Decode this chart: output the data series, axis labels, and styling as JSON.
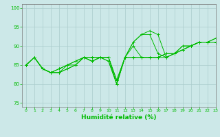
{
  "title": "",
  "xlabel": "Humidité relative (%)",
  "ylabel": "",
  "xlim": [
    -0.5,
    23
  ],
  "ylim": [
    74,
    101
  ],
  "yticks": [
    75,
    80,
    85,
    90,
    95,
    100
  ],
  "xticks": [
    0,
    1,
    2,
    3,
    4,
    5,
    6,
    7,
    8,
    9,
    10,
    11,
    12,
    13,
    14,
    15,
    16,
    17,
    18,
    19,
    20,
    21,
    22,
    23
  ],
  "background_color": "#cce8e8",
  "grid_color": "#aacccc",
  "line_color": "#00bb00",
  "series": [
    [
      85,
      87,
      84,
      83,
      83,
      84,
      85,
      87,
      86,
      87,
      86,
      80,
      87,
      91,
      93,
      94,
      93,
      87,
      88,
      90,
      90,
      91,
      91,
      91
    ],
    [
      85,
      87,
      84,
      83,
      83,
      84,
      85,
      87,
      86,
      87,
      86,
      80,
      87,
      91,
      93,
      93,
      88,
      87,
      88,
      89,
      90,
      91,
      91,
      91
    ],
    [
      85,
      87,
      84,
      83,
      83,
      85,
      85,
      87,
      86,
      87,
      87,
      80,
      87,
      90,
      87,
      87,
      87,
      87,
      88,
      89,
      90,
      91,
      91,
      92
    ],
    [
      85,
      87,
      84,
      83,
      84,
      85,
      86,
      87,
      87,
      87,
      87,
      81,
      87,
      87,
      87,
      87,
      87,
      88,
      88,
      90,
      90,
      91,
      91,
      92
    ],
    [
      85,
      87,
      84,
      83,
      84,
      85,
      86,
      87,
      87,
      87,
      87,
      81,
      87,
      87,
      87,
      87,
      87,
      88,
      88,
      89,
      90,
      91,
      91,
      91
    ]
  ]
}
